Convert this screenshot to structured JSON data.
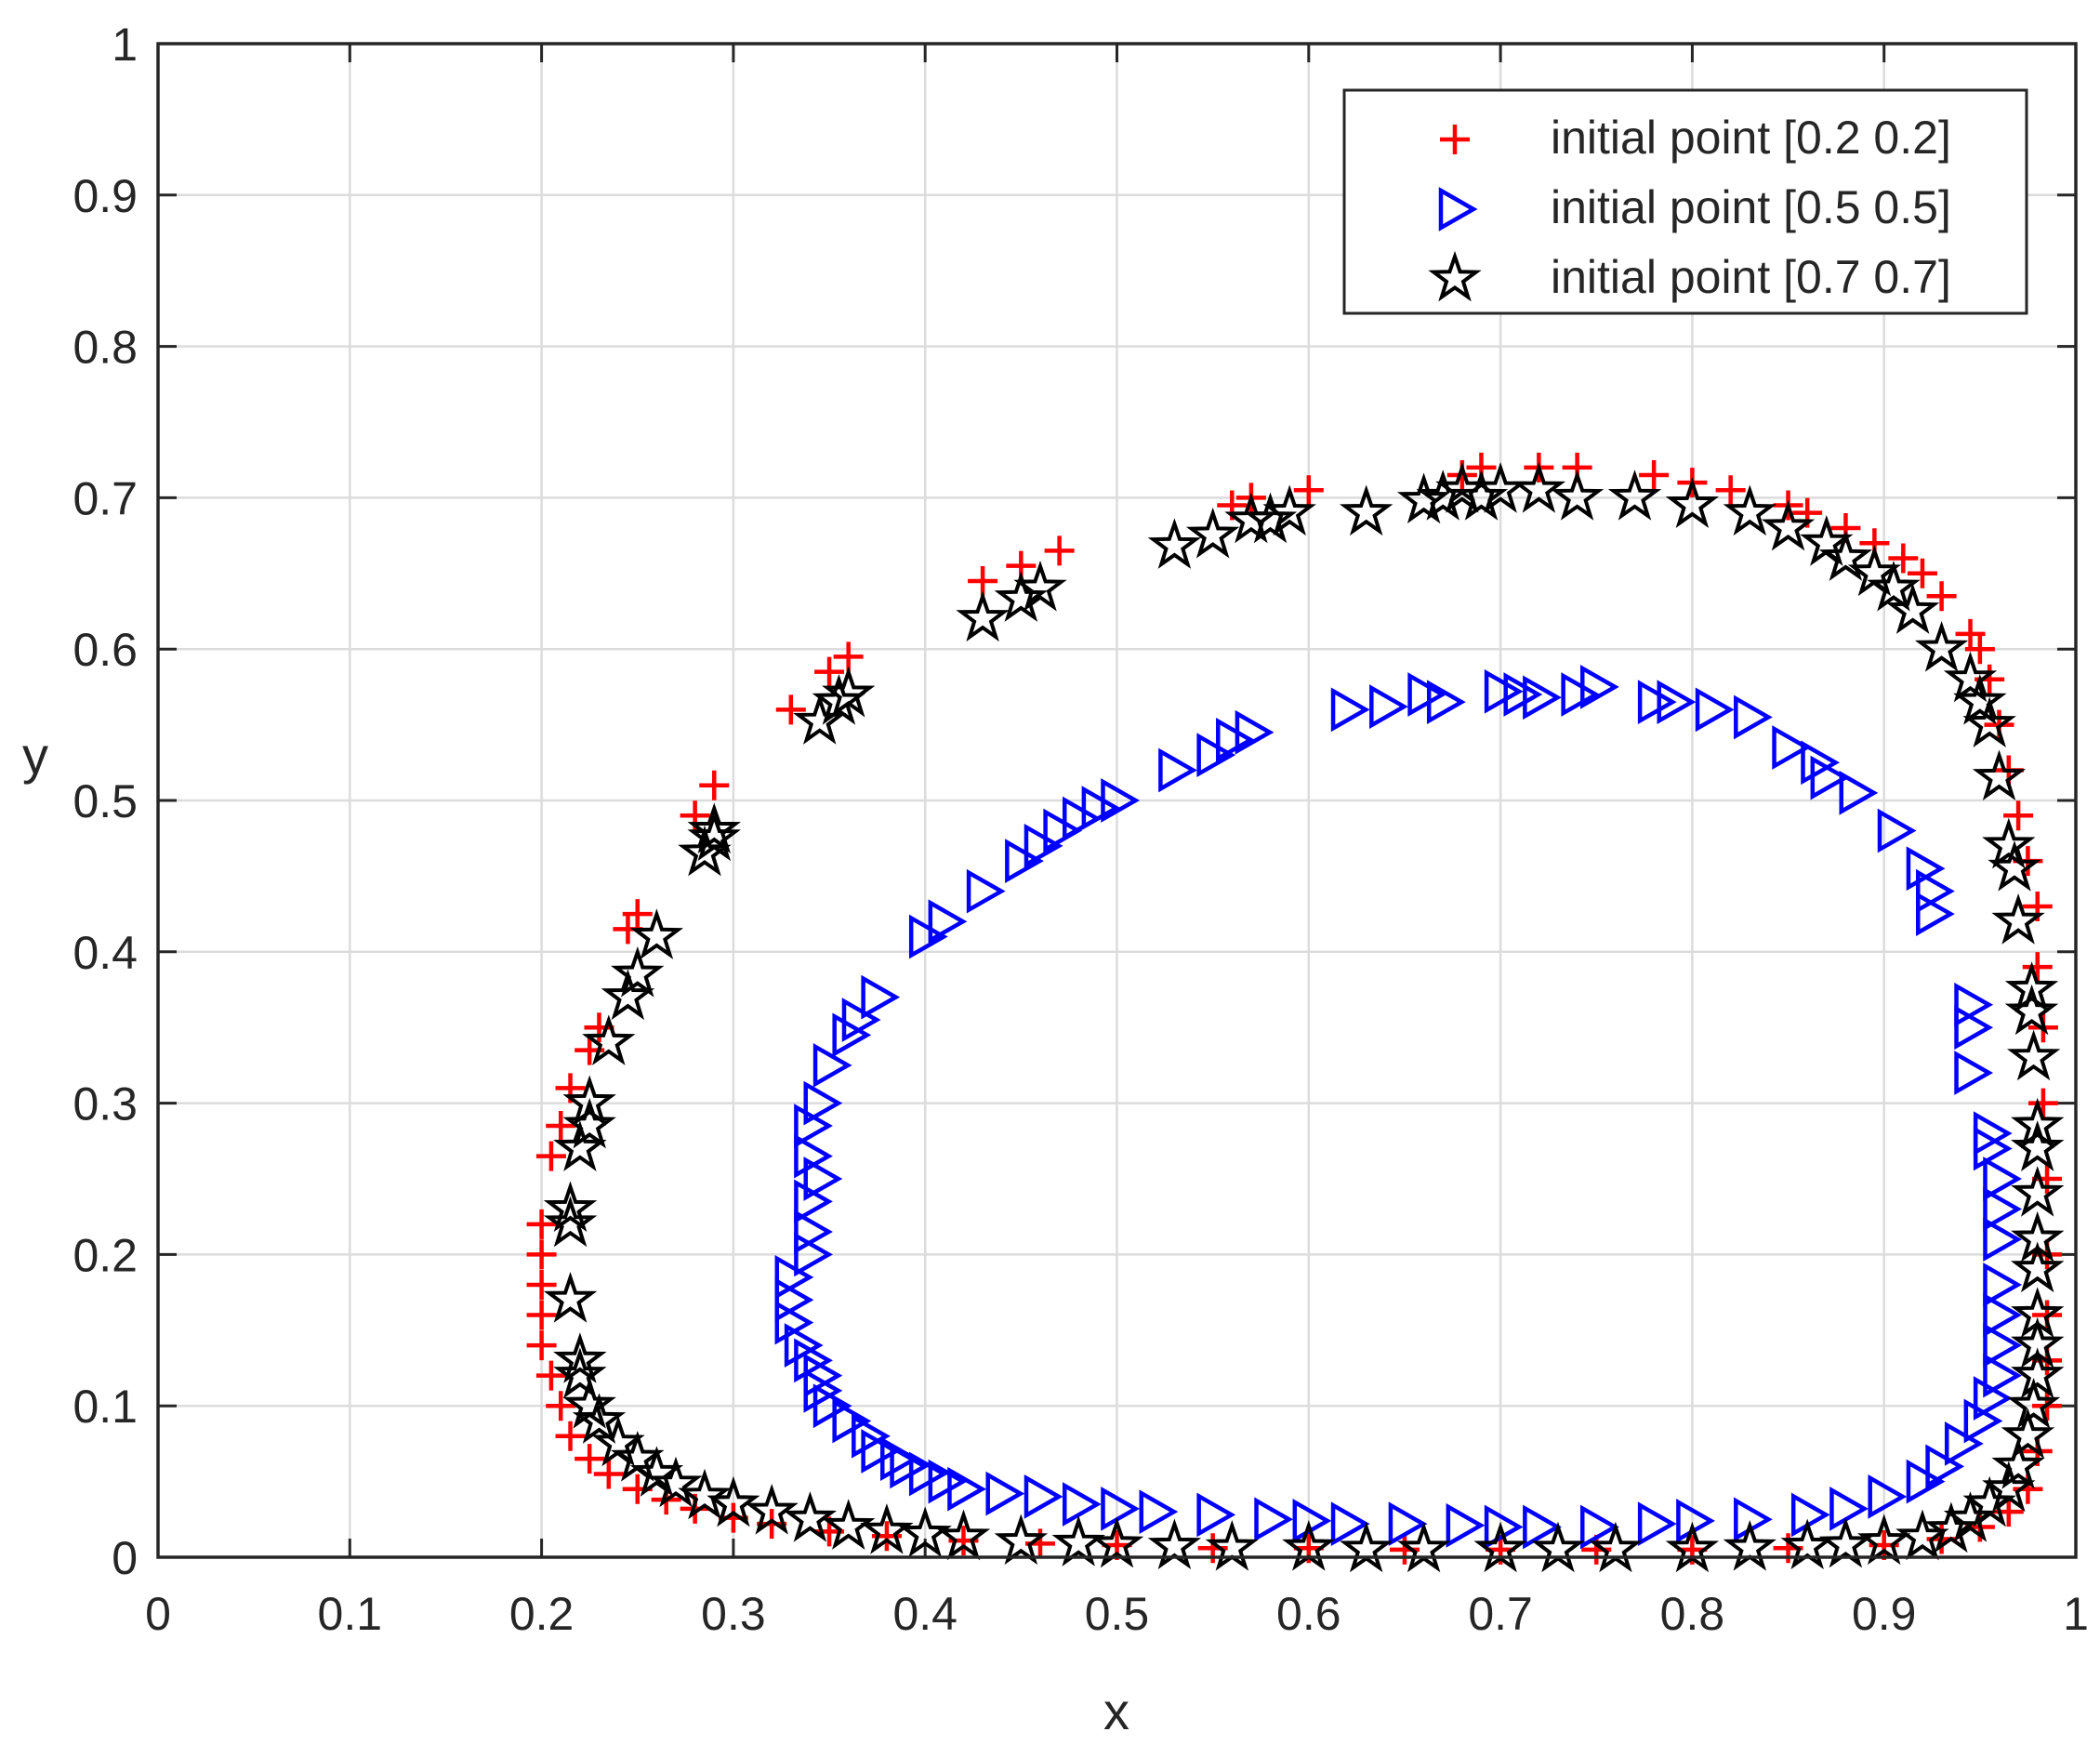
{
  "chart_data": {
    "type": "scatter",
    "title": "",
    "xlabel": "x",
    "ylabel": "y",
    "xlim": [
      0,
      1
    ],
    "ylim": [
      0,
      1
    ],
    "grid": true,
    "legend_position": "top-right",
    "x_ticks": [
      "0",
      "0.1",
      "0.2",
      "0.3",
      "0.4",
      "0.5",
      "0.6",
      "0.7",
      "0.8",
      "0.9",
      "1"
    ],
    "y_ticks": [
      "0",
      "0.1",
      "0.2",
      "0.3",
      "0.4",
      "0.5",
      "0.6",
      "0.7",
      "0.8",
      "0.9",
      "1"
    ],
    "series": [
      {
        "name": "initial point [0.2 0.2]",
        "marker": "plus",
        "color": "#ff0000",
        "points": [
          [
            0.2,
            0.22
          ],
          [
            0.2,
            0.2
          ],
          [
            0.2,
            0.18
          ],
          [
            0.2,
            0.16
          ],
          [
            0.2,
            0.14
          ],
          [
            0.205,
            0.12
          ],
          [
            0.21,
            0.1
          ],
          [
            0.215,
            0.08
          ],
          [
            0.225,
            0.065
          ],
          [
            0.235,
            0.055
          ],
          [
            0.25,
            0.045
          ],
          [
            0.265,
            0.038
          ],
          [
            0.28,
            0.032
          ],
          [
            0.3,
            0.026
          ],
          [
            0.32,
            0.022
          ],
          [
            0.35,
            0.017
          ],
          [
            0.38,
            0.014
          ],
          [
            0.42,
            0.011
          ],
          [
            0.46,
            0.009
          ],
          [
            0.5,
            0.008
          ],
          [
            0.55,
            0.006
          ],
          [
            0.6,
            0.006
          ],
          [
            0.65,
            0.005
          ],
          [
            0.7,
            0.005
          ],
          [
            0.75,
            0.005
          ],
          [
            0.8,
            0.005
          ],
          [
            0.85,
            0.006
          ],
          [
            0.9,
            0.008
          ],
          [
            0.93,
            0.012
          ],
          [
            0.95,
            0.02
          ],
          [
            0.965,
            0.03
          ],
          [
            0.975,
            0.045
          ],
          [
            0.98,
            0.07
          ],
          [
            0.985,
            0.1
          ],
          [
            0.985,
            0.13
          ],
          [
            0.985,
            0.16
          ],
          [
            0.985,
            0.2
          ],
          [
            0.985,
            0.25
          ],
          [
            0.983,
            0.3
          ],
          [
            0.983,
            0.35
          ],
          [
            0.98,
            0.39
          ],
          [
            0.98,
            0.43
          ],
          [
            0.975,
            0.46
          ],
          [
            0.97,
            0.49
          ],
          [
            0.965,
            0.52
          ],
          [
            0.96,
            0.55
          ],
          [
            0.955,
            0.58
          ],
          [
            0.95,
            0.6
          ],
          [
            0.945,
            0.61
          ],
          [
            0.93,
            0.635
          ],
          [
            0.92,
            0.65
          ],
          [
            0.91,
            0.66
          ],
          [
            0.895,
            0.67
          ],
          [
            0.88,
            0.68
          ],
          [
            0.86,
            0.69
          ],
          [
            0.85,
            0.695
          ],
          [
            0.82,
            0.705
          ],
          [
            0.8,
            0.71
          ],
          [
            0.78,
            0.715
          ],
          [
            0.74,
            0.72
          ],
          [
            0.72,
            0.72
          ],
          [
            0.69,
            0.72
          ],
          [
            0.68,
            0.715
          ],
          [
            0.6,
            0.705
          ],
          [
            0.57,
            0.7
          ],
          [
            0.56,
            0.695
          ],
          [
            0.47,
            0.665
          ],
          [
            0.45,
            0.655
          ],
          [
            0.43,
            0.645
          ],
          [
            0.36,
            0.595
          ],
          [
            0.35,
            0.585
          ],
          [
            0.33,
            0.56
          ],
          [
            0.29,
            0.51
          ],
          [
            0.28,
            0.49
          ],
          [
            0.25,
            0.425
          ],
          [
            0.245,
            0.415
          ],
          [
            0.23,
            0.35
          ],
          [
            0.225,
            0.335
          ],
          [
            0.215,
            0.31
          ],
          [
            0.21,
            0.285
          ],
          [
            0.205,
            0.265
          ]
        ]
      },
      {
        "name": "initial point [0.5 0.5]",
        "marker": "triangle-right",
        "color": "#0000ff",
        "points": [
          [
            0.33,
            0.185
          ],
          [
            0.33,
            0.17
          ],
          [
            0.33,
            0.155
          ],
          [
            0.335,
            0.14
          ],
          [
            0.34,
            0.13
          ],
          [
            0.34,
            0.2
          ],
          [
            0.34,
            0.215
          ],
          [
            0.34,
            0.235
          ],
          [
            0.345,
            0.12
          ],
          [
            0.345,
            0.11
          ],
          [
            0.35,
            0.1
          ],
          [
            0.36,
            0.09
          ],
          [
            0.37,
            0.08
          ],
          [
            0.375,
            0.07
          ],
          [
            0.385,
            0.065
          ],
          [
            0.39,
            0.06
          ],
          [
            0.4,
            0.055
          ],
          [
            0.41,
            0.05
          ],
          [
            0.42,
            0.045
          ],
          [
            0.44,
            0.042
          ],
          [
            0.46,
            0.04
          ],
          [
            0.48,
            0.035
          ],
          [
            0.5,
            0.032
          ],
          [
            0.52,
            0.03
          ],
          [
            0.55,
            0.028
          ],
          [
            0.58,
            0.025
          ],
          [
            0.6,
            0.024
          ],
          [
            0.62,
            0.022
          ],
          [
            0.65,
            0.022
          ],
          [
            0.68,
            0.021
          ],
          [
            0.7,
            0.02
          ],
          [
            0.72,
            0.02
          ],
          [
            0.75,
            0.02
          ],
          [
            0.78,
            0.022
          ],
          [
            0.8,
            0.024
          ],
          [
            0.83,
            0.025
          ],
          [
            0.86,
            0.028
          ],
          [
            0.88,
            0.032
          ],
          [
            0.9,
            0.04
          ],
          [
            0.92,
            0.05
          ],
          [
            0.93,
            0.06
          ],
          [
            0.94,
            0.075
          ],
          [
            0.95,
            0.09
          ],
          [
            0.955,
            0.105
          ],
          [
            0.96,
            0.12
          ],
          [
            0.96,
            0.14
          ],
          [
            0.96,
            0.16
          ],
          [
            0.96,
            0.18
          ],
          [
            0.96,
            0.21
          ],
          [
            0.96,
            0.23
          ],
          [
            0.96,
            0.25
          ],
          [
            0.955,
            0.27
          ],
          [
            0.955,
            0.28
          ],
          [
            0.945,
            0.32
          ],
          [
            0.945,
            0.35
          ],
          [
            0.945,
            0.365
          ],
          [
            0.925,
            0.425
          ],
          [
            0.925,
            0.44
          ],
          [
            0.92,
            0.455
          ],
          [
            0.905,
            0.48
          ],
          [
            0.885,
            0.505
          ],
          [
            0.87,
            0.515
          ],
          [
            0.865,
            0.525
          ],
          [
            0.85,
            0.535
          ],
          [
            0.83,
            0.555
          ],
          [
            0.81,
            0.56
          ],
          [
            0.79,
            0.565
          ],
          [
            0.78,
            0.565
          ],
          [
            0.75,
            0.575
          ],
          [
            0.74,
            0.57
          ],
          [
            0.72,
            0.568
          ],
          [
            0.71,
            0.57
          ],
          [
            0.7,
            0.572
          ],
          [
            0.67,
            0.565
          ],
          [
            0.66,
            0.57
          ],
          [
            0.64,
            0.562
          ],
          [
            0.62,
            0.56
          ],
          [
            0.57,
            0.545
          ],
          [
            0.56,
            0.54
          ],
          [
            0.55,
            0.53
          ],
          [
            0.53,
            0.52
          ],
          [
            0.5,
            0.5
          ],
          [
            0.49,
            0.495
          ],
          [
            0.48,
            0.488
          ],
          [
            0.47,
            0.48
          ],
          [
            0.46,
            0.47
          ],
          [
            0.45,
            0.46
          ],
          [
            0.43,
            0.44
          ],
          [
            0.41,
            0.42
          ],
          [
            0.4,
            0.41
          ],
          [
            0.375,
            0.37
          ],
          [
            0.365,
            0.355
          ],
          [
            0.36,
            0.345
          ],
          [
            0.35,
            0.325
          ],
          [
            0.345,
            0.3
          ],
          [
            0.34,
            0.285
          ],
          [
            0.34,
            0.265
          ],
          [
            0.345,
            0.25
          ]
        ]
      },
      {
        "name": "initial point [0.7 0.7]",
        "marker": "star",
        "color": "#000000",
        "points": [
          [
            0.215,
            0.23
          ],
          [
            0.215,
            0.22
          ],
          [
            0.215,
            0.17
          ],
          [
            0.22,
            0.13
          ],
          [
            0.22,
            0.12
          ],
          [
            0.225,
            0.1
          ],
          [
            0.23,
            0.09
          ],
          [
            0.24,
            0.075
          ],
          [
            0.25,
            0.065
          ],
          [
            0.26,
            0.055
          ],
          [
            0.27,
            0.048
          ],
          [
            0.285,
            0.04
          ],
          [
            0.3,
            0.035
          ],
          [
            0.32,
            0.03
          ],
          [
            0.34,
            0.025
          ],
          [
            0.36,
            0.02
          ],
          [
            0.38,
            0.017
          ],
          [
            0.4,
            0.015
          ],
          [
            0.42,
            0.013
          ],
          [
            0.45,
            0.01
          ],
          [
            0.48,
            0.009
          ],
          [
            0.5,
            0.008
          ],
          [
            0.53,
            0.007
          ],
          [
            0.56,
            0.006
          ],
          [
            0.6,
            0.006
          ],
          [
            0.63,
            0.005
          ],
          [
            0.66,
            0.005
          ],
          [
            0.7,
            0.005
          ],
          [
            0.73,
            0.005
          ],
          [
            0.76,
            0.005
          ],
          [
            0.8,
            0.005
          ],
          [
            0.83,
            0.006
          ],
          [
            0.86,
            0.007
          ],
          [
            0.88,
            0.008
          ],
          [
            0.9,
            0.01
          ],
          [
            0.92,
            0.013
          ],
          [
            0.935,
            0.018
          ],
          [
            0.945,
            0.025
          ],
          [
            0.955,
            0.035
          ],
          [
            0.965,
            0.045
          ],
          [
            0.97,
            0.06
          ],
          [
            0.975,
            0.08
          ],
          [
            0.978,
            0.1
          ],
          [
            0.98,
            0.12
          ],
          [
            0.98,
            0.14
          ],
          [
            0.98,
            0.16
          ],
          [
            0.98,
            0.19
          ],
          [
            0.98,
            0.21
          ],
          [
            0.98,
            0.24
          ],
          [
            0.98,
            0.27
          ],
          [
            0.98,
            0.285
          ],
          [
            0.978,
            0.33
          ],
          [
            0.977,
            0.36
          ],
          [
            0.977,
            0.375
          ],
          [
            0.97,
            0.42
          ],
          [
            0.968,
            0.455
          ],
          [
            0.965,
            0.47
          ],
          [
            0.96,
            0.515
          ],
          [
            0.955,
            0.55
          ],
          [
            0.95,
            0.565
          ],
          [
            0.945,
            0.58
          ],
          [
            0.93,
            0.6
          ],
          [
            0.915,
            0.625
          ],
          [
            0.905,
            0.64
          ],
          [
            0.895,
            0.65
          ],
          [
            0.88,
            0.66
          ],
          [
            0.87,
            0.67
          ],
          [
            0.85,
            0.68
          ],
          [
            0.83,
            0.69
          ],
          [
            0.8,
            0.695
          ],
          [
            0.77,
            0.7
          ],
          [
            0.74,
            0.7
          ],
          [
            0.72,
            0.705
          ],
          [
            0.7,
            0.705
          ],
          [
            0.69,
            0.7
          ],
          [
            0.68,
            0.705
          ],
          [
            0.67,
            0.7
          ],
          [
            0.66,
            0.698
          ],
          [
            0.63,
            0.69
          ],
          [
            0.59,
            0.69
          ],
          [
            0.58,
            0.685
          ],
          [
            0.57,
            0.685
          ],
          [
            0.55,
            0.675
          ],
          [
            0.53,
            0.668
          ],
          [
            0.46,
            0.64
          ],
          [
            0.45,
            0.633
          ],
          [
            0.43,
            0.62
          ],
          [
            0.36,
            0.57
          ],
          [
            0.355,
            0.565
          ],
          [
            0.345,
            0.552
          ],
          [
            0.29,
            0.48
          ],
          [
            0.29,
            0.475
          ],
          [
            0.285,
            0.465
          ],
          [
            0.26,
            0.41
          ],
          [
            0.25,
            0.385
          ],
          [
            0.245,
            0.37
          ],
          [
            0.235,
            0.34
          ],
          [
            0.225,
            0.3
          ],
          [
            0.225,
            0.285
          ],
          [
            0.22,
            0.27
          ]
        ]
      }
    ]
  }
}
